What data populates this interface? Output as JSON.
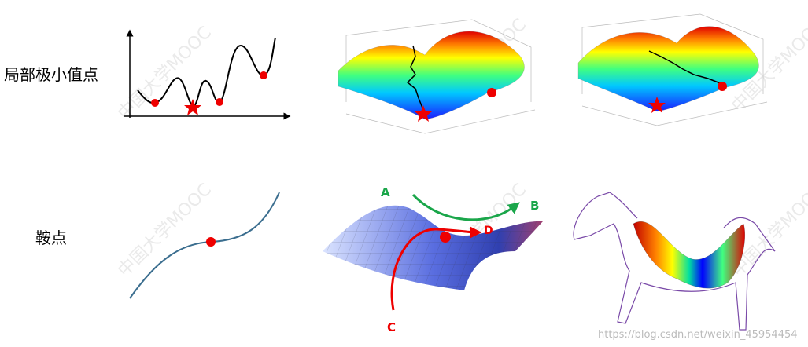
{
  "labels": {
    "local_minimum": "局部极小值点",
    "saddle_point": "鞍点"
  },
  "path_labels": {
    "a": "A",
    "b": "B",
    "c": "C",
    "d": "D"
  },
  "watermark": "中国大学MOOC",
  "footer_url": "https://blog.csdn.net/weixin_45954454"
}
